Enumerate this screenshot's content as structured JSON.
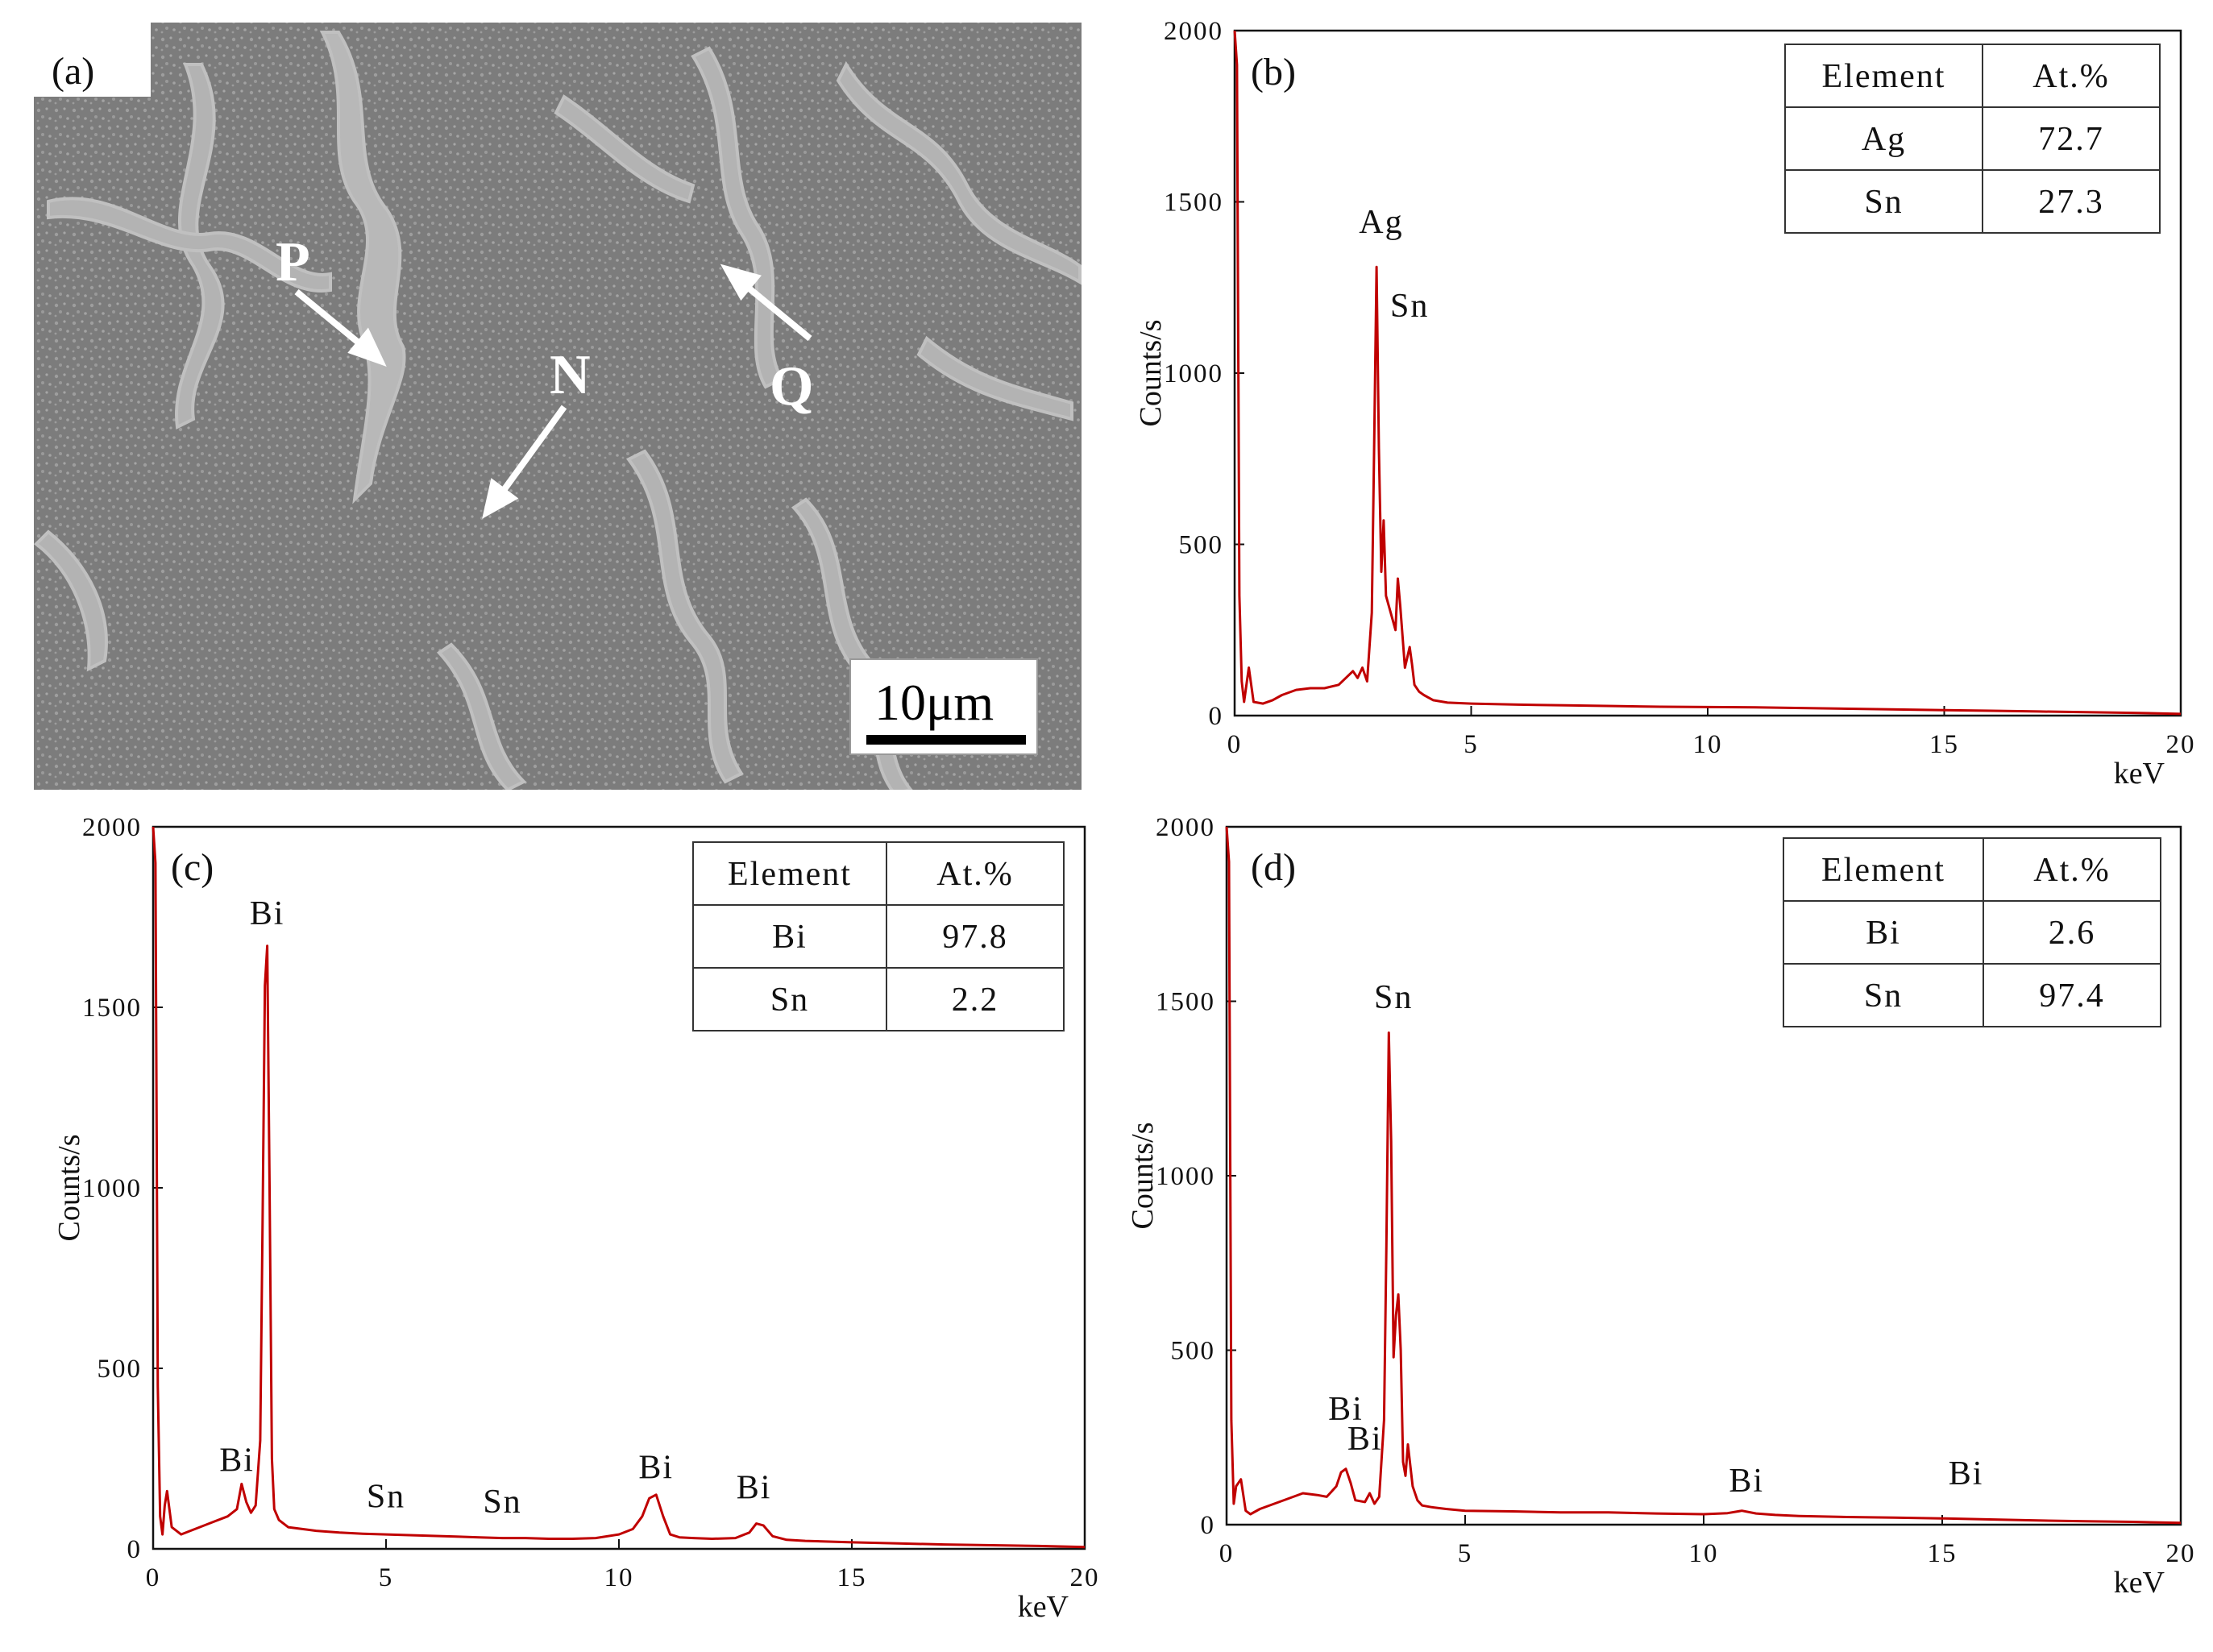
{
  "figure": {
    "sem": {
      "label": "(a)",
      "markers": [
        "P",
        "N",
        "Q"
      ],
      "scale_bar": "10μm"
    }
  },
  "chart_data": [
    {
      "panel": "(b)",
      "type": "line",
      "xlabel": "keV",
      "ylabel": "Counts/s",
      "xlim": [
        0,
        20
      ],
      "ylim": [
        0,
        2000
      ],
      "xticks": [
        0,
        5,
        10,
        15,
        20
      ],
      "yticks": [
        0,
        500,
        1000,
        1500,
        2000
      ],
      "line_color": "#c00000",
      "series": [
        {
          "x": [
            0,
            0.05,
            0.1,
            0.15,
            0.2,
            0.3,
            0.4,
            0.6,
            0.8,
            1.0,
            1.3,
            1.6,
            1.9,
            2.2,
            2.5,
            2.6,
            2.7,
            2.8,
            2.9,
            2.95,
            3.0,
            3.05,
            3.1,
            3.15,
            3.2,
            3.3,
            3.4,
            3.45,
            3.5,
            3.6,
            3.7,
            3.75,
            3.8,
            3.9,
            4.0,
            4.2,
            4.5,
            5,
            6,
            7,
            8,
            9,
            10,
            11,
            12,
            13,
            14,
            15,
            16,
            17,
            18,
            19,
            20
          ],
          "y": [
            2000,
            1900,
            350,
            100,
            40,
            140,
            40,
            35,
            45,
            60,
            75,
            80,
            80,
            90,
            130,
            110,
            140,
            100,
            300,
            800,
            1310,
            780,
            420,
            570,
            350,
            300,
            250,
            400,
            320,
            140,
            200,
            150,
            90,
            70,
            60,
            45,
            38,
            35,
            32,
            30,
            28,
            26,
            25,
            24,
            22,
            20,
            18,
            16,
            14,
            12,
            10,
            8,
            5
          ]
        }
      ],
      "annotations": [
        {
          "text": "Ag",
          "x": 3.1,
          "y": 1410
        },
        {
          "text": "Sn",
          "x": 3.7,
          "y": 1165
        }
      ],
      "table": {
        "headers": [
          "Element",
          "At.%"
        ],
        "rows": [
          [
            "Ag",
            "72.7"
          ],
          [
            "Sn",
            "27.3"
          ]
        ]
      }
    },
    {
      "panel": "(c)",
      "type": "line",
      "xlabel": "keV",
      "ylabel": "Counts/s",
      "xlim": [
        0,
        20
      ],
      "ylim": [
        0,
        2000
      ],
      "xticks": [
        0,
        5,
        10,
        15,
        20
      ],
      "yticks": [
        0,
        500,
        1000,
        1500,
        2000
      ],
      "line_color": "#c00000",
      "series": [
        {
          "x": [
            0,
            0.05,
            0.1,
            0.15,
            0.2,
            0.25,
            0.3,
            0.4,
            0.6,
            0.8,
            1.0,
            1.3,
            1.6,
            1.8,
            1.9,
            2.0,
            2.1,
            2.2,
            2.3,
            2.35,
            2.4,
            2.45,
            2.5,
            2.55,
            2.6,
            2.7,
            2.9,
            3.2,
            3.5,
            4,
            4.5,
            5,
            5.5,
            6,
            6.5,
            7,
            7.5,
            8,
            8.5,
            9,
            9.5,
            10,
            10.3,
            10.5,
            10.65,
            10.8,
            10.95,
            11.1,
            11.3,
            11.6,
            12,
            12.5,
            12.8,
            12.95,
            13.1,
            13.3,
            13.6,
            14,
            15,
            16,
            17,
            18,
            19,
            20
          ],
          "y": [
            2000,
            1900,
            450,
            90,
            40,
            120,
            160,
            60,
            40,
            50,
            60,
            75,
            90,
            110,
            180,
            130,
            100,
            120,
            300,
            900,
            1560,
            1670,
            1000,
            250,
            110,
            80,
            60,
            55,
            50,
            45,
            42,
            40,
            38,
            36,
            34,
            32,
            30,
            30,
            28,
            28,
            30,
            40,
            55,
            90,
            140,
            150,
            90,
            40,
            32,
            30,
            28,
            30,
            45,
            70,
            65,
            35,
            25,
            22,
            18,
            15,
            12,
            10,
            8,
            5
          ]
        }
      ],
      "annotations": [
        {
          "text": "Bi",
          "x": 2.45,
          "y": 1730
        },
        {
          "text": "Bi",
          "x": 1.8,
          "y": 215
        },
        {
          "text": "Sn",
          "x": 5.0,
          "y": 115
        },
        {
          "text": "Sn",
          "x": 7.5,
          "y": 100
        },
        {
          "text": "Bi",
          "x": 10.8,
          "y": 195
        },
        {
          "text": "Bi",
          "x": 12.9,
          "y": 140
        }
      ],
      "table": {
        "headers": [
          "Element",
          "At.%"
        ],
        "rows": [
          [
            "Bi",
            "97.8"
          ],
          [
            "Sn",
            "2.2"
          ]
        ]
      }
    },
    {
      "panel": "(d)",
      "type": "line",
      "xlabel": "keV",
      "ylabel": "Counts/s",
      "xlim": [
        0,
        20
      ],
      "ylim": [
        0,
        2000
      ],
      "xticks": [
        0,
        5,
        10,
        15,
        20
      ],
      "yticks": [
        0,
        500,
        1000,
        1500,
        2000
      ],
      "line_color": "#c00000",
      "series": [
        {
          "x": [
            0,
            0.05,
            0.1,
            0.15,
            0.2,
            0.3,
            0.4,
            0.5,
            0.7,
            1.0,
            1.3,
            1.6,
            1.9,
            2.1,
            2.3,
            2.4,
            2.5,
            2.6,
            2.7,
            2.9,
            3.0,
            3.1,
            3.2,
            3.3,
            3.35,
            3.4,
            3.45,
            3.5,
            3.55,
            3.6,
            3.65,
            3.7,
            3.75,
            3.8,
            3.9,
            4.0,
            4.1,
            4.3,
            4.6,
            5,
            6,
            7,
            8,
            9,
            10,
            10.5,
            10.8,
            11.1,
            11.5,
            12,
            13,
            14,
            15,
            16,
            17,
            18,
            19,
            20
          ],
          "y": [
            2000,
            1900,
            300,
            60,
            110,
            130,
            40,
            30,
            45,
            60,
            75,
            90,
            85,
            80,
            110,
            150,
            160,
            120,
            70,
            65,
            90,
            60,
            80,
            300,
            800,
            1410,
            1100,
            480,
            600,
            660,
            500,
            180,
            140,
            230,
            110,
            70,
            55,
            50,
            45,
            40,
            38,
            35,
            35,
            32,
            30,
            33,
            40,
            32,
            28,
            25,
            22,
            20,
            18,
            15,
            12,
            10,
            8,
            5
          ]
        }
      ],
      "annotations": [
        {
          "text": "Sn",
          "x": 3.5,
          "y": 1480
        },
        {
          "text": "Bi",
          "x": 2.5,
          "y": 300
        },
        {
          "text": "Bi",
          "x": 2.9,
          "y": 215
        },
        {
          "text": "Bi",
          "x": 10.9,
          "y": 95
        },
        {
          "text": "Bi",
          "x": 15.5,
          "y": 115
        }
      ],
      "table": {
        "headers": [
          "Element",
          "At.%"
        ],
        "rows": [
          [
            "Bi",
            "2.6"
          ],
          [
            "Sn",
            "97.4"
          ]
        ]
      }
    }
  ]
}
